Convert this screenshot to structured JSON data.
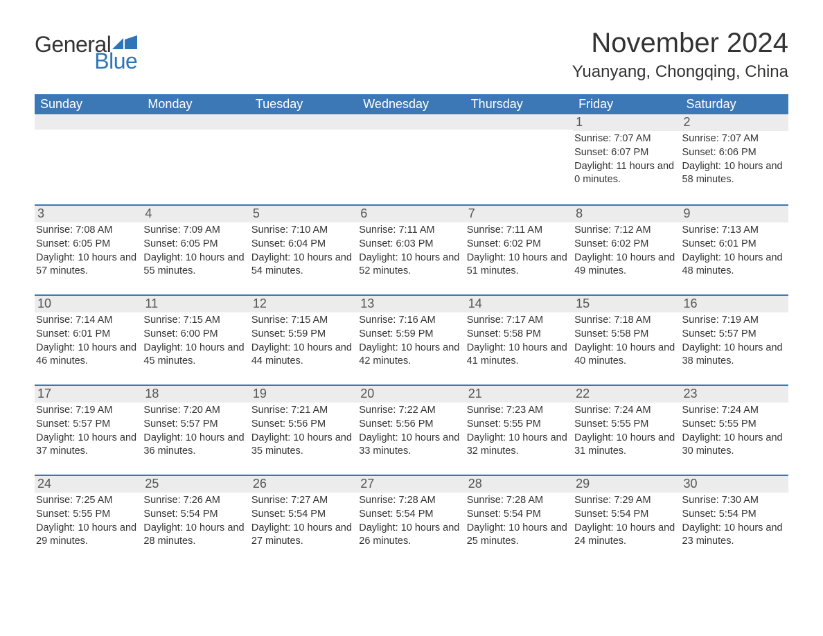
{
  "logo": {
    "text_general": "General",
    "text_blue": "Blue",
    "flag_color": "#2e75b6"
  },
  "title": {
    "month": "November 2024",
    "location": "Yuanyang, Chongqing, China"
  },
  "colors": {
    "header_bg": "#3b78b5",
    "header_text": "#ffffff",
    "daybar_bg": "#ececec",
    "daybar_border": "#3b78b5",
    "text": "#333333",
    "logo_blue": "#2e75b6"
  },
  "columns": [
    "Sunday",
    "Monday",
    "Tuesday",
    "Wednesday",
    "Thursday",
    "Friday",
    "Saturday"
  ],
  "weeks": [
    [
      null,
      null,
      null,
      null,
      null,
      {
        "n": "1",
        "sunrise": "7:07 AM",
        "sunset": "6:07 PM",
        "daylight": "11 hours and 0 minutes."
      },
      {
        "n": "2",
        "sunrise": "7:07 AM",
        "sunset": "6:06 PM",
        "daylight": "10 hours and 58 minutes."
      }
    ],
    [
      {
        "n": "3",
        "sunrise": "7:08 AM",
        "sunset": "6:05 PM",
        "daylight": "10 hours and 57 minutes."
      },
      {
        "n": "4",
        "sunrise": "7:09 AM",
        "sunset": "6:05 PM",
        "daylight": "10 hours and 55 minutes."
      },
      {
        "n": "5",
        "sunrise": "7:10 AM",
        "sunset": "6:04 PM",
        "daylight": "10 hours and 54 minutes."
      },
      {
        "n": "6",
        "sunrise": "7:11 AM",
        "sunset": "6:03 PM",
        "daylight": "10 hours and 52 minutes."
      },
      {
        "n": "7",
        "sunrise": "7:11 AM",
        "sunset": "6:02 PM",
        "daylight": "10 hours and 51 minutes."
      },
      {
        "n": "8",
        "sunrise": "7:12 AM",
        "sunset": "6:02 PM",
        "daylight": "10 hours and 49 minutes."
      },
      {
        "n": "9",
        "sunrise": "7:13 AM",
        "sunset": "6:01 PM",
        "daylight": "10 hours and 48 minutes."
      }
    ],
    [
      {
        "n": "10",
        "sunrise": "7:14 AM",
        "sunset": "6:01 PM",
        "daylight": "10 hours and 46 minutes."
      },
      {
        "n": "11",
        "sunrise": "7:15 AM",
        "sunset": "6:00 PM",
        "daylight": "10 hours and 45 minutes."
      },
      {
        "n": "12",
        "sunrise": "7:15 AM",
        "sunset": "5:59 PM",
        "daylight": "10 hours and 44 minutes."
      },
      {
        "n": "13",
        "sunrise": "7:16 AM",
        "sunset": "5:59 PM",
        "daylight": "10 hours and 42 minutes."
      },
      {
        "n": "14",
        "sunrise": "7:17 AM",
        "sunset": "5:58 PM",
        "daylight": "10 hours and 41 minutes."
      },
      {
        "n": "15",
        "sunrise": "7:18 AM",
        "sunset": "5:58 PM",
        "daylight": "10 hours and 40 minutes."
      },
      {
        "n": "16",
        "sunrise": "7:19 AM",
        "sunset": "5:57 PM",
        "daylight": "10 hours and 38 minutes."
      }
    ],
    [
      {
        "n": "17",
        "sunrise": "7:19 AM",
        "sunset": "5:57 PM",
        "daylight": "10 hours and 37 minutes."
      },
      {
        "n": "18",
        "sunrise": "7:20 AM",
        "sunset": "5:57 PM",
        "daylight": "10 hours and 36 minutes."
      },
      {
        "n": "19",
        "sunrise": "7:21 AM",
        "sunset": "5:56 PM",
        "daylight": "10 hours and 35 minutes."
      },
      {
        "n": "20",
        "sunrise": "7:22 AM",
        "sunset": "5:56 PM",
        "daylight": "10 hours and 33 minutes."
      },
      {
        "n": "21",
        "sunrise": "7:23 AM",
        "sunset": "5:55 PM",
        "daylight": "10 hours and 32 minutes."
      },
      {
        "n": "22",
        "sunrise": "7:24 AM",
        "sunset": "5:55 PM",
        "daylight": "10 hours and 31 minutes."
      },
      {
        "n": "23",
        "sunrise": "7:24 AM",
        "sunset": "5:55 PM",
        "daylight": "10 hours and 30 minutes."
      }
    ],
    [
      {
        "n": "24",
        "sunrise": "7:25 AM",
        "sunset": "5:55 PM",
        "daylight": "10 hours and 29 minutes."
      },
      {
        "n": "25",
        "sunrise": "7:26 AM",
        "sunset": "5:54 PM",
        "daylight": "10 hours and 28 minutes."
      },
      {
        "n": "26",
        "sunrise": "7:27 AM",
        "sunset": "5:54 PM",
        "daylight": "10 hours and 27 minutes."
      },
      {
        "n": "27",
        "sunrise": "7:28 AM",
        "sunset": "5:54 PM",
        "daylight": "10 hours and 26 minutes."
      },
      {
        "n": "28",
        "sunrise": "7:28 AM",
        "sunset": "5:54 PM",
        "daylight": "10 hours and 25 minutes."
      },
      {
        "n": "29",
        "sunrise": "7:29 AM",
        "sunset": "5:54 PM",
        "daylight": "10 hours and 24 minutes."
      },
      {
        "n": "30",
        "sunrise": "7:30 AM",
        "sunset": "5:54 PM",
        "daylight": "10 hours and 23 minutes."
      }
    ]
  ],
  "labels": {
    "sunrise": "Sunrise: ",
    "sunset": "Sunset: ",
    "daylight": "Daylight: "
  }
}
